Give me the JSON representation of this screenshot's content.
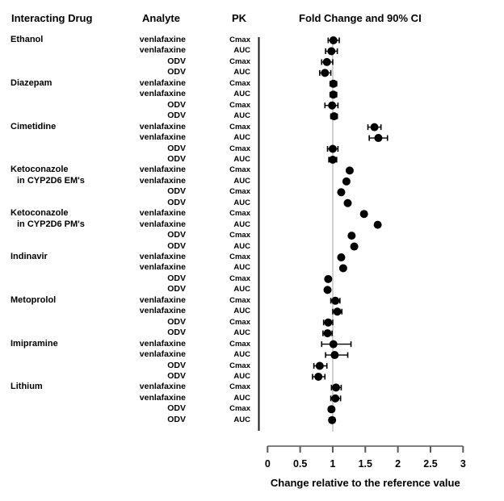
{
  "headers": {
    "interacting_drug": "Interacting Drug",
    "analyte": "Analyte",
    "pk": "PK",
    "fold_change": "Fold Change and 90% CI"
  },
  "colors": {
    "text": "#000000",
    "marker": "#000000",
    "axis_line": "#808080",
    "tick": "#595959",
    "panel_line": "#1a1a1a",
    "reference_line": "#a3a3a3",
    "background": "#ffffff"
  },
  "chart_data": {
    "type": "scatter",
    "subtype": "forest-plot",
    "title": "Fold Change and 90% CI",
    "xlabel": "Change relative to the reference value",
    "xlim": [
      0,
      3
    ],
    "x_ticks": [
      0,
      0.5,
      1,
      1.5,
      2,
      2.5,
      3
    ],
    "x_tick_labels": [
      "0",
      "0.5",
      "1",
      "1.5",
      "2",
      "2.5",
      "3"
    ],
    "reference_line_x": 1,
    "ci_level": "90%",
    "grid": false,
    "rows": [
      {
        "drug": "Ethanol",
        "indent": false,
        "analyte": "venlafaxine",
        "pk": "Cmax",
        "value": 1.01,
        "lo": 0.93,
        "hi": 1.1
      },
      {
        "drug": "",
        "indent": false,
        "analyte": "venlafaxine",
        "pk": "AUC",
        "value": 0.98,
        "lo": 0.89,
        "hi": 1.07
      },
      {
        "drug": "",
        "indent": false,
        "analyte": "ODV",
        "pk": "Cmax",
        "value": 0.91,
        "lo": 0.83,
        "hi": 1.0
      },
      {
        "drug": "",
        "indent": false,
        "analyte": "ODV",
        "pk": "AUC",
        "value": 0.88,
        "lo": 0.8,
        "hi": 0.97
      },
      {
        "drug": "Diazepam",
        "indent": false,
        "analyte": "venlafaxine",
        "pk": "Cmax",
        "value": 1.01,
        "lo": 0.96,
        "hi": 1.06
      },
      {
        "drug": "",
        "indent": false,
        "analyte": "venlafaxine",
        "pk": "AUC",
        "value": 1.01,
        "lo": 0.96,
        "hi": 1.06
      },
      {
        "drug": "",
        "indent": false,
        "analyte": "ODV",
        "pk": "Cmax",
        "value": 0.99,
        "lo": 0.88,
        "hi": 1.08
      },
      {
        "drug": "",
        "indent": false,
        "analyte": "ODV",
        "pk": "AUC",
        "value": 1.02,
        "lo": 0.97,
        "hi": 1.07
      },
      {
        "drug": "Cimetidine",
        "indent": false,
        "analyte": "venlafaxine",
        "pk": "Cmax",
        "value": 1.64,
        "lo": 1.54,
        "hi": 1.74
      },
      {
        "drug": "",
        "indent": false,
        "analyte": "venlafaxine",
        "pk": "AUC",
        "value": 1.7,
        "lo": 1.56,
        "hi": 1.84
      },
      {
        "drug": "",
        "indent": false,
        "analyte": "ODV",
        "pk": "Cmax",
        "value": 1.0,
        "lo": 0.92,
        "hi": 1.08
      },
      {
        "drug": "",
        "indent": false,
        "analyte": "ODV",
        "pk": "AUC",
        "value": 1.0,
        "lo": 0.94,
        "hi": 1.06
      },
      {
        "drug": "Ketoconazole",
        "indent": false,
        "analyte": "venlafaxine",
        "pk": "Cmax",
        "value": 1.26,
        "lo": null,
        "hi": null
      },
      {
        "drug": "in CYP2D6 EM's",
        "indent": true,
        "analyte": "venlafaxine",
        "pk": "AUC",
        "value": 1.21,
        "lo": null,
        "hi": null
      },
      {
        "drug": "",
        "indent": false,
        "analyte": "ODV",
        "pk": "Cmax",
        "value": 1.13,
        "lo": null,
        "hi": null
      },
      {
        "drug": "",
        "indent": false,
        "analyte": "ODV",
        "pk": "AUC",
        "value": 1.23,
        "lo": null,
        "hi": null
      },
      {
        "drug": "Ketoconazole",
        "indent": false,
        "analyte": "venlafaxine",
        "pk": "Cmax",
        "value": 1.48,
        "lo": null,
        "hi": null
      },
      {
        "drug": "in CYP2D6 PM's",
        "indent": true,
        "analyte": "venlafaxine",
        "pk": "AUC",
        "value": 1.69,
        "lo": null,
        "hi": null
      },
      {
        "drug": "",
        "indent": false,
        "analyte": "ODV",
        "pk": "Cmax",
        "value": 1.29,
        "lo": null,
        "hi": null
      },
      {
        "drug": "",
        "indent": false,
        "analyte": "ODV",
        "pk": "AUC",
        "value": 1.33,
        "lo": null,
        "hi": null
      },
      {
        "drug": "Indinavir",
        "indent": false,
        "analyte": "venlafaxine",
        "pk": "Cmax",
        "value": 1.13,
        "lo": null,
        "hi": null
      },
      {
        "drug": "",
        "indent": false,
        "analyte": "venlafaxine",
        "pk": "AUC",
        "value": 1.16,
        "lo": null,
        "hi": null
      },
      {
        "drug": "",
        "indent": false,
        "analyte": "ODV",
        "pk": "Cmax",
        "value": 0.93,
        "lo": null,
        "hi": null
      },
      {
        "drug": "",
        "indent": false,
        "analyte": "ODV",
        "pk": "AUC",
        "value": 0.92,
        "lo": null,
        "hi": null
      },
      {
        "drug": "Metoprolol",
        "indent": false,
        "analyte": "venlafaxine",
        "pk": "Cmax",
        "value": 1.04,
        "lo": 0.97,
        "hi": 1.11
      },
      {
        "drug": "",
        "indent": false,
        "analyte": "venlafaxine",
        "pk": "AUC",
        "value": 1.07,
        "lo": 1.0,
        "hi": 1.14
      },
      {
        "drug": "",
        "indent": false,
        "analyte": "ODV",
        "pk": "Cmax",
        "value": 0.93,
        "lo": 0.86,
        "hi": 1.0
      },
      {
        "drug": "",
        "indent": false,
        "analyte": "ODV",
        "pk": "AUC",
        "value": 0.92,
        "lo": 0.85,
        "hi": 0.99
      },
      {
        "drug": "Imipramine",
        "indent": false,
        "analyte": "venlafaxine",
        "pk": "Cmax",
        "value": 1.01,
        "lo": 0.83,
        "hi": 1.28
      },
      {
        "drug": "",
        "indent": false,
        "analyte": "venlafaxine",
        "pk": "AUC",
        "value": 1.03,
        "lo": 0.89,
        "hi": 1.23
      },
      {
        "drug": "",
        "indent": false,
        "analyte": "ODV",
        "pk": "Cmax",
        "value": 0.8,
        "lo": 0.71,
        "hi": 0.91
      },
      {
        "drug": "",
        "indent": false,
        "analyte": "ODV",
        "pk": "AUC",
        "value": 0.78,
        "lo": 0.69,
        "hi": 0.88
      },
      {
        "drug": "Lithium",
        "indent": false,
        "analyte": "venlafaxine",
        "pk": "Cmax",
        "value": 1.05,
        "lo": 0.98,
        "hi": 1.13
      },
      {
        "drug": "",
        "indent": false,
        "analyte": "venlafaxine",
        "pk": "AUC",
        "value": 1.04,
        "lo": 0.97,
        "hi": 1.12
      },
      {
        "drug": "",
        "indent": false,
        "analyte": "ODV",
        "pk": "Cmax",
        "value": 0.98,
        "lo": 0.94,
        "hi": 1.02
      },
      {
        "drug": "",
        "indent": false,
        "analyte": "ODV",
        "pk": "AUC",
        "value": 0.99,
        "lo": 0.95,
        "hi": 1.03
      }
    ]
  }
}
